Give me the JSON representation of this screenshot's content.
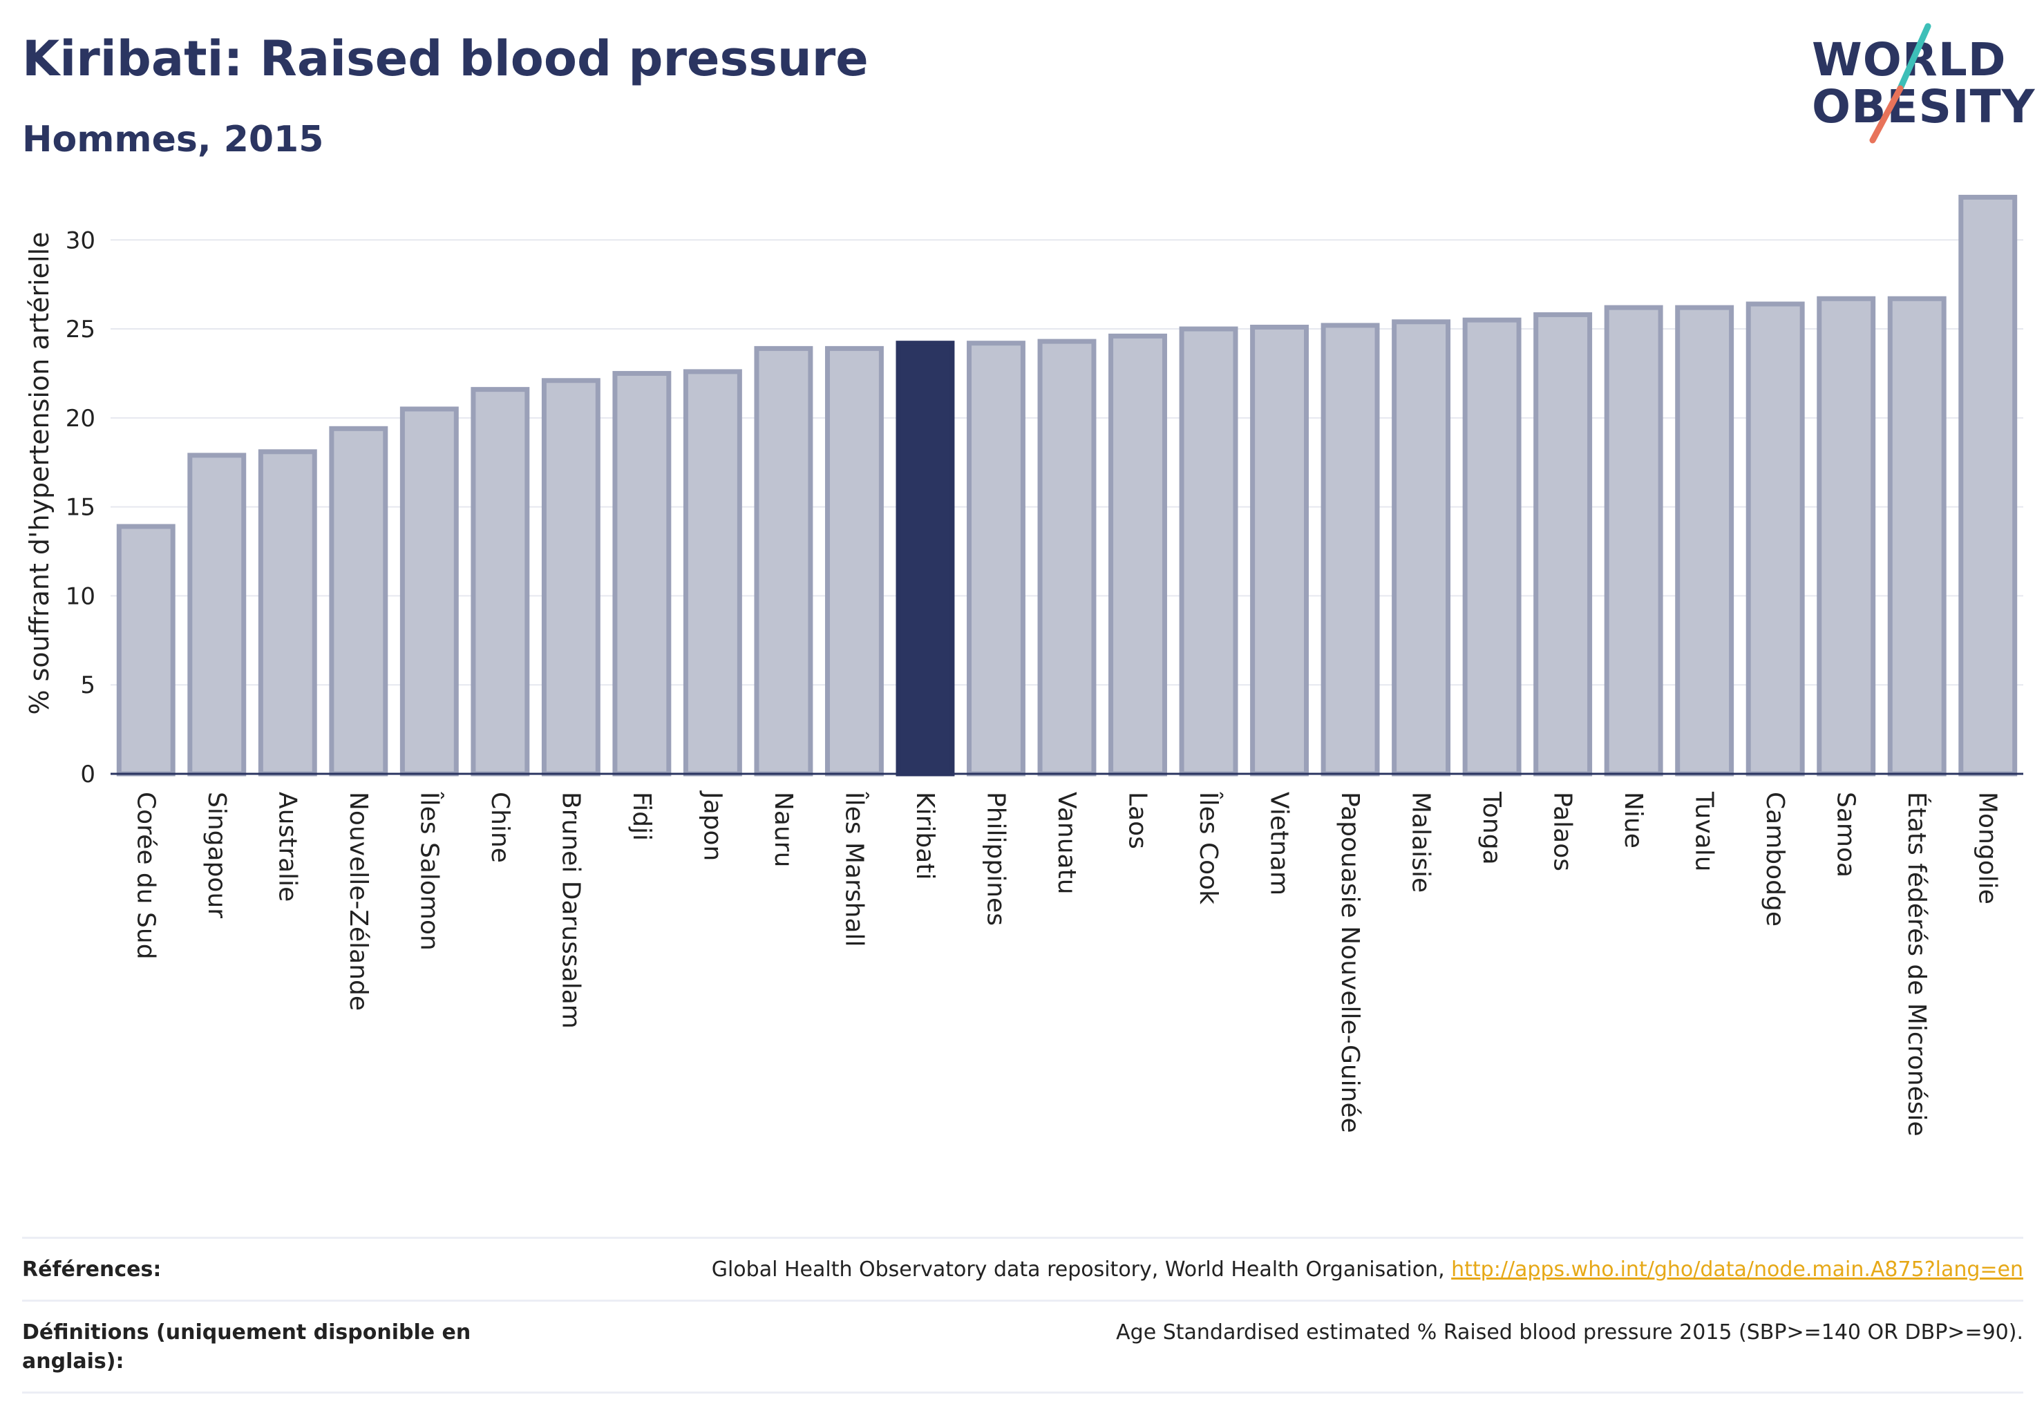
{
  "header": {
    "title": "Kiribati: Raised blood pressure",
    "subtitle": "Hommes, 2015"
  },
  "logo": {
    "line1": "WORLD",
    "line2": "OBESITY",
    "slash_colors": [
      "#3dbfb8",
      "#e8735a"
    ]
  },
  "colors": {
    "highlight": "#2b3561",
    "bar": "#bfc3d1",
    "bar_border": "#9aa0b8",
    "text": "#2b3561",
    "grid": "#e6e8ef",
    "link": "#e6a817"
  },
  "chart_data": {
    "type": "bar",
    "title": "Kiribati: Raised blood pressure",
    "subtitle": "Hommes, 2015",
    "ylabel": "% souffrant d'hypertension artérielle",
    "xlabel": "",
    "ylim": [
      0,
      33
    ],
    "yticks": [
      0,
      5,
      10,
      15,
      20,
      25,
      30
    ],
    "grid": true,
    "highlight": "Kiribati",
    "categories": [
      "Corée du Sud",
      "Singapour",
      "Australie",
      "Nouvelle-Zélande",
      "Îles Salomon",
      "Chine",
      "Brunei Darussalam",
      "Fidji",
      "Japon",
      "Nauru",
      "Îles Marshall",
      "Kiribati",
      "Philippines",
      "Vanuatu",
      "Laos",
      "Îles Cook",
      "Vietnam",
      "Papouasie Nouvelle-Guinée",
      "Malaisie",
      "Tonga",
      "Palaos",
      "Niue",
      "Tuvalu",
      "Cambodge",
      "Samoa",
      "États fédérés de Micronésie",
      "Mongolie"
    ],
    "values": [
      13.9,
      17.9,
      18.1,
      19.4,
      20.5,
      21.6,
      22.1,
      22.5,
      22.6,
      23.9,
      23.9,
      24.2,
      24.2,
      24.3,
      24.6,
      25.0,
      25.1,
      25.2,
      25.4,
      25.5,
      25.8,
      26.2,
      26.2,
      26.4,
      26.7,
      26.7,
      32.4
    ]
  },
  "references": {
    "label": "Références:",
    "text": "Global Health Observatory data repository, World Health Organisation, ",
    "link": "http://apps.who.int/gho/data/node.main.A875?lang=en"
  },
  "definitions": {
    "label": "Définitions (uniquement disponible en anglais):",
    "text": "Age Standardised estimated % Raised blood pressure 2015 (SBP>=140 OR DBP>=90)."
  }
}
